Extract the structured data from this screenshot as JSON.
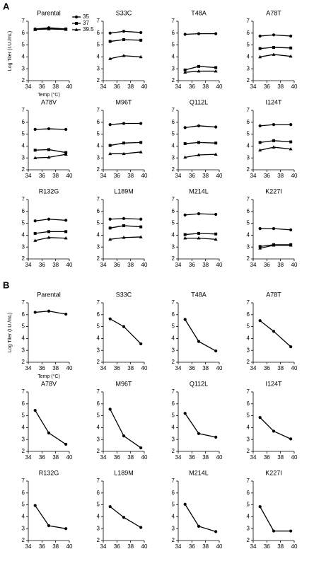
{
  "panel_labels": [
    "A",
    "B"
  ],
  "chart_data": [
    {
      "type": "line",
      "title": "Parental",
      "ylabel": "Log Titer (I.U./mL)",
      "xlabel": "Temp (°C)",
      "legend": true,
      "x": [
        35,
        37,
        39.5
      ],
      "xlim": [
        34,
        40
      ],
      "xticks": [
        34,
        36,
        38,
        40
      ],
      "ylim": [
        2,
        7
      ],
      "yticks": [
        2,
        3,
        4,
        5,
        6,
        7
      ],
      "series": [
        {
          "name": "35",
          "marker": "circle",
          "color": "#000000",
          "values": [
            6.35,
            6.45,
            6.35
          ]
        },
        {
          "name": "37",
          "marker": "square",
          "color": "#000000",
          "values": [
            6.3,
            6.4,
            6.35
          ]
        },
        {
          "name": "39.5",
          "marker": "triangle",
          "color": "#000000",
          "values": [
            6.3,
            6.35,
            6.3
          ]
        }
      ]
    },
    {
      "type": "line",
      "title": "S33C",
      "x": [
        35,
        37,
        39.5
      ],
      "xlim": [
        34,
        40
      ],
      "xticks": [
        34,
        36,
        38,
        40
      ],
      "ylim": [
        2,
        7
      ],
      "yticks": [
        2,
        3,
        4,
        5,
        6,
        7
      ],
      "series": [
        {
          "marker": "circle",
          "color": "#000000",
          "values": [
            6.0,
            6.15,
            6.05
          ]
        },
        {
          "marker": "square",
          "color": "#000000",
          "values": [
            5.3,
            5.45,
            5.4
          ]
        },
        {
          "marker": "triangle",
          "color": "#000000",
          "values": [
            3.85,
            4.1,
            4.0
          ]
        }
      ]
    },
    {
      "type": "line",
      "title": "T48A",
      "x": [
        35,
        37,
        39.5
      ],
      "xlim": [
        34,
        40
      ],
      "xticks": [
        34,
        36,
        38,
        40
      ],
      "ylim": [
        2,
        7
      ],
      "yticks": [
        2,
        3,
        4,
        5,
        6,
        7
      ],
      "series": [
        {
          "marker": "circle",
          "color": "#000000",
          "values": [
            5.9,
            5.95,
            5.95
          ]
        },
        {
          "marker": "square",
          "color": "#000000",
          "values": [
            2.9,
            3.2,
            3.1
          ]
        },
        {
          "marker": "triangle",
          "color": "#000000",
          "values": [
            2.7,
            2.8,
            2.8
          ]
        }
      ]
    },
    {
      "type": "line",
      "title": "A78T",
      "x": [
        35,
        37,
        39.5
      ],
      "xlim": [
        34,
        40
      ],
      "xticks": [
        34,
        36,
        38,
        40
      ],
      "ylim": [
        2,
        7
      ],
      "yticks": [
        2,
        3,
        4,
        5,
        6,
        7
      ],
      "series": [
        {
          "marker": "circle",
          "color": "#000000",
          "values": [
            5.75,
            5.85,
            5.75
          ]
        },
        {
          "marker": "square",
          "color": "#000000",
          "values": [
            4.7,
            4.8,
            4.75
          ]
        },
        {
          "marker": "triangle",
          "color": "#000000",
          "values": [
            4.0,
            4.2,
            4.05
          ]
        }
      ]
    },
    {
      "type": "line",
      "title": "A78V",
      "x": [
        35,
        37,
        39.5
      ],
      "xlim": [
        34,
        40
      ],
      "xticks": [
        34,
        36,
        38,
        40
      ],
      "ylim": [
        2,
        7
      ],
      "yticks": [
        2,
        3,
        4,
        5,
        6,
        7
      ],
      "series": [
        {
          "marker": "circle",
          "color": "#000000",
          "values": [
            5.4,
            5.45,
            5.4
          ]
        },
        {
          "marker": "square",
          "color": "#000000",
          "values": [
            3.65,
            3.7,
            3.45
          ]
        },
        {
          "marker": "triangle",
          "color": "#000000",
          "values": [
            3.0,
            3.05,
            3.3
          ]
        }
      ]
    },
    {
      "type": "line",
      "title": "M96T",
      "x": [
        35,
        37,
        39.5
      ],
      "xlim": [
        34,
        40
      ],
      "xticks": [
        34,
        36,
        38,
        40
      ],
      "ylim": [
        2,
        7
      ],
      "yticks": [
        2,
        3,
        4,
        5,
        6,
        7
      ],
      "series": [
        {
          "marker": "circle",
          "color": "#000000",
          "values": [
            5.8,
            5.9,
            5.9
          ]
        },
        {
          "marker": "square",
          "color": "#000000",
          "values": [
            4.05,
            4.25,
            4.3
          ]
        },
        {
          "marker": "triangle",
          "color": "#000000",
          "values": [
            3.35,
            3.35,
            3.5
          ]
        }
      ]
    },
    {
      "type": "line",
      "title": "Q112L",
      "x": [
        35,
        37,
        39.5
      ],
      "xlim": [
        34,
        40
      ],
      "xticks": [
        34,
        36,
        38,
        40
      ],
      "ylim": [
        2,
        7
      ],
      "yticks": [
        2,
        3,
        4,
        5,
        6,
        7
      ],
      "series": [
        {
          "marker": "circle",
          "color": "#000000",
          "values": [
            5.55,
            5.7,
            5.6
          ]
        },
        {
          "marker": "square",
          "color": "#000000",
          "values": [
            4.2,
            4.3,
            4.25
          ]
        },
        {
          "marker": "triangle",
          "color": "#000000",
          "values": [
            3.05,
            3.25,
            3.3
          ]
        }
      ]
    },
    {
      "type": "line",
      "title": "I124T",
      "x": [
        35,
        37,
        39.5
      ],
      "xlim": [
        34,
        40
      ],
      "xticks": [
        34,
        36,
        38,
        40
      ],
      "ylim": [
        2,
        7
      ],
      "yticks": [
        2,
        3,
        4,
        5,
        6,
        7
      ],
      "series": [
        {
          "marker": "circle",
          "color": "#000000",
          "values": [
            5.7,
            5.8,
            5.8
          ]
        },
        {
          "marker": "square",
          "color": "#000000",
          "values": [
            4.3,
            4.45,
            4.35
          ]
        },
        {
          "marker": "triangle",
          "color": "#000000",
          "values": [
            3.65,
            3.9,
            3.75
          ]
        }
      ]
    },
    {
      "type": "line",
      "title": "R132G",
      "x": [
        35,
        37,
        39.5
      ],
      "xlim": [
        34,
        40
      ],
      "xticks": [
        34,
        36,
        38,
        40
      ],
      "ylim": [
        2,
        7
      ],
      "yticks": [
        2,
        3,
        4,
        5,
        6,
        7
      ],
      "series": [
        {
          "marker": "circle",
          "color": "#000000",
          "values": [
            5.2,
            5.35,
            5.25
          ]
        },
        {
          "marker": "square",
          "color": "#000000",
          "values": [
            4.15,
            4.3,
            4.3
          ]
        },
        {
          "marker": "triangle",
          "color": "#000000",
          "values": [
            3.55,
            3.8,
            3.75
          ]
        }
      ]
    },
    {
      "type": "line",
      "title": "L189M",
      "x": [
        35,
        37,
        39.5
      ],
      "xlim": [
        34,
        40
      ],
      "xticks": [
        34,
        36,
        38,
        40
      ],
      "ylim": [
        2,
        7
      ],
      "yticks": [
        2,
        3,
        4,
        5,
        6,
        7
      ],
      "series": [
        {
          "marker": "circle",
          "color": "#000000",
          "values": [
            5.35,
            5.4,
            5.35
          ]
        },
        {
          "marker": "square",
          "color": "#000000",
          "values": [
            4.6,
            4.8,
            4.7
          ]
        },
        {
          "marker": "triangle",
          "color": "#000000",
          "values": [
            3.65,
            3.8,
            3.85
          ]
        }
      ]
    },
    {
      "type": "line",
      "title": "M214L",
      "x": [
        35,
        37,
        39.5
      ],
      "xlim": [
        34,
        40
      ],
      "xticks": [
        34,
        36,
        38,
        40
      ],
      "ylim": [
        2,
        7
      ],
      "yticks": [
        2,
        3,
        4,
        5,
        6,
        7
      ],
      "series": [
        {
          "marker": "circle",
          "color": "#000000",
          "values": [
            5.7,
            5.8,
            5.75
          ]
        },
        {
          "marker": "square",
          "color": "#000000",
          "values": [
            4.05,
            4.15,
            4.1
          ]
        },
        {
          "marker": "triangle",
          "color": "#000000",
          "values": [
            3.75,
            3.75,
            3.65
          ]
        }
      ]
    },
    {
      "type": "line",
      "title": "K227I",
      "x": [
        35,
        37,
        39.5
      ],
      "xlim": [
        34,
        40
      ],
      "xticks": [
        34,
        36,
        38,
        40
      ],
      "ylim": [
        2,
        7
      ],
      "yticks": [
        2,
        3,
        4,
        5,
        6,
        7
      ],
      "series": [
        {
          "marker": "circle",
          "color": "#000000",
          "values": [
            4.55,
            4.55,
            4.45
          ]
        },
        {
          "marker": "square",
          "color": "#000000",
          "values": [
            3.05,
            3.2,
            3.2
          ]
        },
        {
          "marker": "triangle",
          "color": "#000000",
          "values": [
            2.9,
            3.15,
            3.15
          ]
        }
      ]
    },
    {
      "type": "line",
      "title": "Parental",
      "ylabel": "Log Titer (I.U./mL)",
      "xlabel": "Temp (°C)",
      "x": [
        35,
        37,
        39.5
      ],
      "xlim": [
        34,
        40
      ],
      "xticks": [
        34,
        36,
        38,
        40
      ],
      "ylim": [
        2,
        7
      ],
      "yticks": [
        2,
        3,
        4,
        5,
        6,
        7
      ],
      "series": [
        {
          "marker": "circle",
          "color": "#000000",
          "values": [
            6.2,
            6.3,
            6.05
          ]
        }
      ]
    },
    {
      "type": "line",
      "title": "S33C",
      "x": [
        35,
        37,
        39.5
      ],
      "xlim": [
        34,
        40
      ],
      "xticks": [
        34,
        36,
        38,
        40
      ],
      "ylim": [
        2,
        7
      ],
      "yticks": [
        2,
        3,
        4,
        5,
        6,
        7
      ],
      "series": [
        {
          "marker": "circle",
          "color": "#000000",
          "values": [
            5.65,
            5.0,
            3.55
          ]
        }
      ]
    },
    {
      "type": "line",
      "title": "T48A",
      "x": [
        35,
        37,
        39.5
      ],
      "xlim": [
        34,
        40
      ],
      "xticks": [
        34,
        36,
        38,
        40
      ],
      "ylim": [
        2,
        7
      ],
      "yticks": [
        2,
        3,
        4,
        5,
        6,
        7
      ],
      "series": [
        {
          "marker": "circle",
          "color": "#000000",
          "values": [
            5.6,
            3.75,
            2.95
          ]
        }
      ]
    },
    {
      "type": "line",
      "title": "A78T",
      "x": [
        35,
        37,
        39.5
      ],
      "xlim": [
        34,
        40
      ],
      "xticks": [
        34,
        36,
        38,
        40
      ],
      "ylim": [
        2,
        7
      ],
      "yticks": [
        2,
        3,
        4,
        5,
        6,
        7
      ],
      "series": [
        {
          "marker": "circle",
          "color": "#000000",
          "values": [
            5.5,
            4.6,
            3.3
          ]
        }
      ]
    },
    {
      "type": "line",
      "title": "A78V",
      "x": [
        35,
        37,
        39.5
      ],
      "xlim": [
        34,
        40
      ],
      "xticks": [
        34,
        36,
        38,
        40
      ],
      "ylim": [
        2,
        7
      ],
      "yticks": [
        2,
        3,
        4,
        5,
        6,
        7
      ],
      "series": [
        {
          "marker": "circle",
          "color": "#000000",
          "values": [
            5.45,
            3.55,
            2.6
          ]
        }
      ]
    },
    {
      "type": "line",
      "title": "M96T",
      "x": [
        35,
        37,
        39.5
      ],
      "xlim": [
        34,
        40
      ],
      "xticks": [
        34,
        36,
        38,
        40
      ],
      "ylim": [
        2,
        7
      ],
      "yticks": [
        2,
        3,
        4,
        5,
        6,
        7
      ],
      "series": [
        {
          "marker": "circle",
          "color": "#000000",
          "values": [
            5.55,
            3.3,
            2.3
          ]
        }
      ]
    },
    {
      "type": "line",
      "title": "Q112L",
      "x": [
        35,
        37,
        39.5
      ],
      "xlim": [
        34,
        40
      ],
      "xticks": [
        34,
        36,
        38,
        40
      ],
      "ylim": [
        2,
        7
      ],
      "yticks": [
        2,
        3,
        4,
        5,
        6,
        7
      ],
      "series": [
        {
          "marker": "circle",
          "color": "#000000",
          "values": [
            5.2,
            3.5,
            3.2
          ]
        }
      ]
    },
    {
      "type": "line",
      "title": "I124T",
      "x": [
        35,
        37,
        39.5
      ],
      "xlim": [
        34,
        40
      ],
      "xticks": [
        34,
        36,
        38,
        40
      ],
      "ylim": [
        2,
        7
      ],
      "yticks": [
        2,
        3,
        4,
        5,
        6,
        7
      ],
      "series": [
        {
          "marker": "circle",
          "color": "#000000",
          "values": [
            4.85,
            3.7,
            3.05
          ]
        }
      ]
    },
    {
      "type": "line",
      "title": "R132G",
      "x": [
        35,
        37,
        39.5
      ],
      "xlim": [
        34,
        40
      ],
      "xticks": [
        34,
        36,
        38,
        40
      ],
      "ylim": [
        2,
        7
      ],
      "yticks": [
        2,
        3,
        4,
        5,
        6,
        7
      ],
      "series": [
        {
          "marker": "circle",
          "color": "#000000",
          "values": [
            4.95,
            3.25,
            3.0
          ]
        }
      ]
    },
    {
      "type": "line",
      "title": "L189M",
      "x": [
        35,
        37,
        39.5
      ],
      "xlim": [
        34,
        40
      ],
      "xticks": [
        34,
        36,
        38,
        40
      ],
      "ylim": [
        2,
        7
      ],
      "yticks": [
        2,
        3,
        4,
        5,
        6,
        7
      ],
      "series": [
        {
          "marker": "circle",
          "color": "#000000",
          "values": [
            4.85,
            3.95,
            3.1
          ]
        }
      ]
    },
    {
      "type": "line",
      "title": "M214L",
      "x": [
        35,
        37,
        39.5
      ],
      "xlim": [
        34,
        40
      ],
      "xticks": [
        34,
        36,
        38,
        40
      ],
      "ylim": [
        2,
        7
      ],
      "yticks": [
        2,
        3,
        4,
        5,
        6,
        7
      ],
      "series": [
        {
          "marker": "circle",
          "color": "#000000",
          "values": [
            5.05,
            3.2,
            2.75
          ]
        }
      ]
    },
    {
      "type": "line",
      "title": "K227I",
      "x": [
        35,
        37,
        39.5
      ],
      "xlim": [
        34,
        40
      ],
      "xticks": [
        34,
        36,
        38,
        40
      ],
      "ylim": [
        2,
        7
      ],
      "yticks": [
        2,
        3,
        4,
        5,
        6,
        7
      ],
      "series": [
        {
          "marker": "circle",
          "color": "#000000",
          "values": [
            4.85,
            2.8,
            2.8
          ]
        }
      ]
    }
  ]
}
